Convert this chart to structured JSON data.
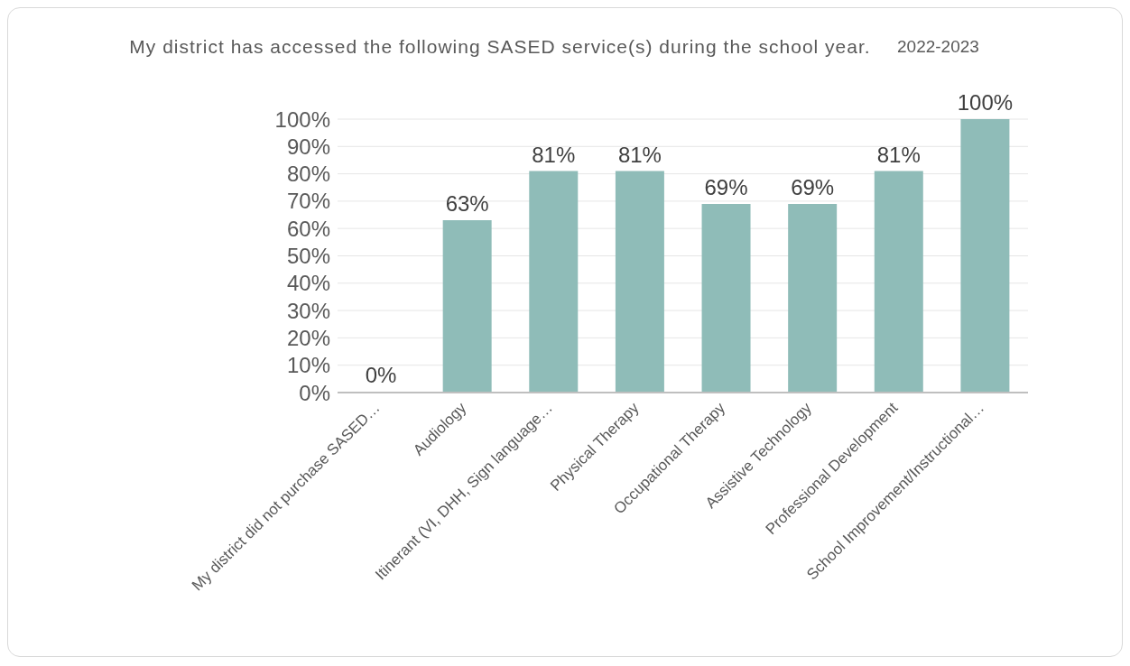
{
  "chart_data": {
    "type": "bar",
    "title": "My district has accessed the following SASED service(s) during the school year.",
    "subtitle": "2022-2023",
    "categories": [
      "My district did not purchase SASED…",
      "Audiology",
      "Itinerant (VI, DHH, Sign language…",
      "Physical Therapy",
      "Occupational Therapy",
      "Assistive Technology",
      "Professional Development",
      "School Improvement/Instructional…"
    ],
    "values": [
      0,
      63,
      81,
      81,
      69,
      69,
      81,
      100
    ],
    "value_labels": [
      "0%",
      "63%",
      "81%",
      "81%",
      "69%",
      "69%",
      "81%",
      "100%"
    ],
    "color": "#8fbcb8",
    "ylim": [
      0,
      100
    ],
    "yticks": [
      {
        "value": 0,
        "label": "0%"
      },
      {
        "value": 10,
        "label": "10%"
      },
      {
        "value": 20,
        "label": "20%"
      },
      {
        "value": 30,
        "label": "30%"
      },
      {
        "value": 40,
        "label": "40%"
      },
      {
        "value": 50,
        "label": "50%"
      },
      {
        "value": 60,
        "label": "60%"
      },
      {
        "value": 70,
        "label": "70%"
      },
      {
        "value": 80,
        "label": "80%"
      },
      {
        "value": 90,
        "label": "90%"
      },
      {
        "value": 100,
        "label": "100%"
      }
    ],
    "grid": "y"
  }
}
